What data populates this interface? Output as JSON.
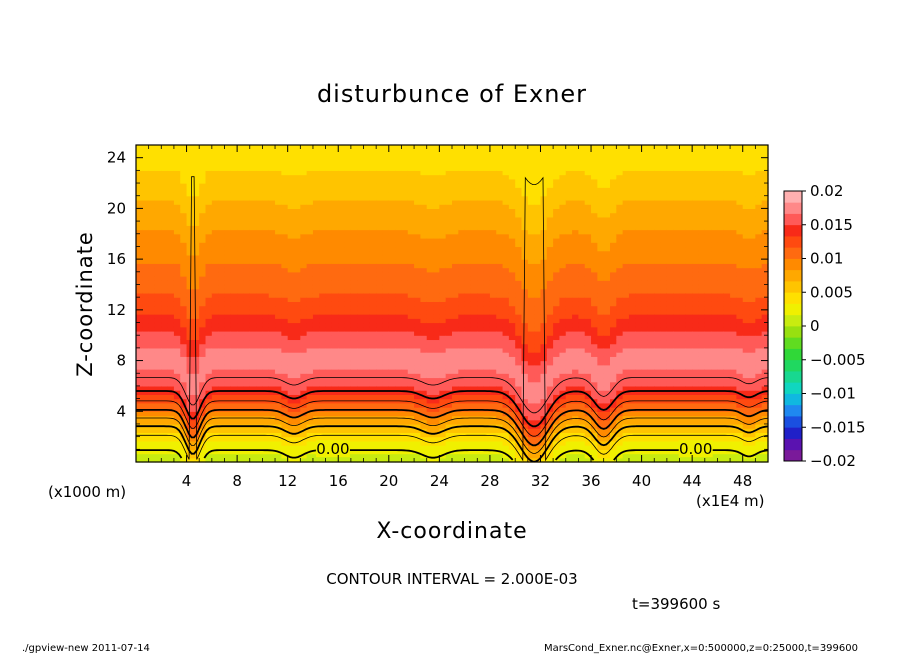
{
  "chart_data": {
    "type": "heatmap",
    "title": "disturbunce of Exner",
    "xlabel": "X-coordinate",
    "ylabel": "Z-coordinate",
    "x_unit": "(x1E4 m)",
    "y_unit": "(x1000 m)",
    "xlim": [
      0,
      50
    ],
    "ylim": [
      0,
      25
    ],
    "x_ticks": [
      4,
      8,
      12,
      16,
      20,
      24,
      28,
      32,
      36,
      40,
      44,
      48
    ],
    "y_ticks": [
      4,
      8,
      12,
      16,
      20,
      24
    ],
    "x_tick_labels": [
      "4",
      "8",
      "12",
      "16",
      "20",
      "24",
      "28",
      "32",
      "36",
      "40",
      "44",
      "48"
    ],
    "y_tick_labels": [
      "4",
      "8",
      "12",
      "16",
      "20",
      "24"
    ],
    "colorbar": {
      "range": [
        -0.02,
        0.02
      ],
      "tick_labels": [
        "0.02",
        "0.015",
        "0.01",
        "0.005",
        "0",
        "−0.005",
        "−0.01",
        "−0.015",
        "−0.02"
      ],
      "colors": [
        "#7a1a9a",
        "#5a12b0",
        "#2020c8",
        "#1a4fe0",
        "#1f88f0",
        "#10b8e0",
        "#10d6c0",
        "#18d890",
        "#20d860",
        "#30d838",
        "#60dc20",
        "#98e010",
        "#c8ec10",
        "#f0f000",
        "#ffe000",
        "#ffc400",
        "#ffa800",
        "#ff8a00",
        "#ff6a10",
        "#ff4a10",
        "#f82a18",
        "#ff5a58",
        "#ff8888",
        "#ffb0b0"
      ]
    },
    "profile_z": [
      0,
      0.5,
      1,
      2,
      3,
      4,
      5,
      6,
      7,
      8,
      9,
      10,
      11,
      12,
      13,
      14,
      16,
      18,
      20,
      22,
      24,
      25
    ],
    "profile_value": [
      0.0005,
      0.0013,
      0.0021,
      0.0037,
      0.0065,
      0.0097,
      0.0125,
      0.015,
      0.0165,
      0.0172,
      0.0168,
      0.0155,
      0.014,
      0.0128,
      0.0118,
      0.0111,
      0.0098,
      0.0085,
      0.0071,
      0.0057,
      0.0044,
      0.0038
    ],
    "dips": [
      {
        "x": 4.5,
        "depth": 2.2,
        "width": 0.8
      },
      {
        "x": 12.5,
        "depth": 0.6,
        "width": 1.0
      },
      {
        "x": 23.5,
        "depth": 0.6,
        "width": 1.2
      },
      {
        "x": 31.5,
        "depth": 2.8,
        "width": 1.5
      },
      {
        "x": 37,
        "depth": 1.5,
        "width": 1.0
      },
      {
        "x": 48.5,
        "depth": 0.5,
        "width": 0.8
      }
    ],
    "contour_interval": 0.002,
    "contour_labels": [
      {
        "text": "0.00",
        "x": 15.5,
        "z": 0.3
      },
      {
        "text": "0.00",
        "x": 44.2,
        "z": 0.3
      }
    ],
    "annotation_interval": "CONTOUR INTERVAL = 2.000E-03",
    "annotation_time": "t=399600 s"
  },
  "footer": {
    "left": "./gpview-new   2011-07-14",
    "right": "MarsCond_Exner.nc@Exner,x=0:500000,z=0:25000,t=399600"
  }
}
